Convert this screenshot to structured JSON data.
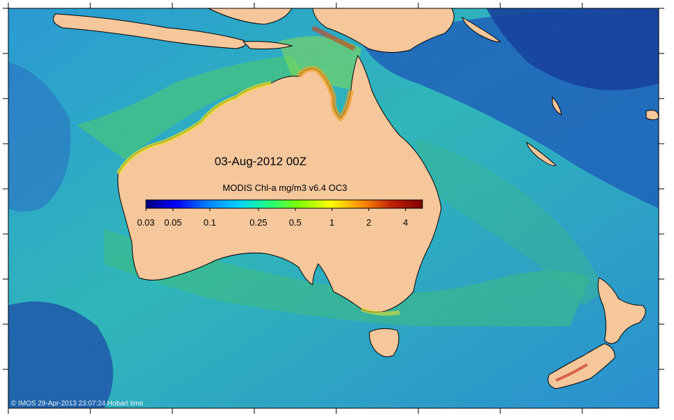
{
  "map": {
    "date_label": "03-Aug-2012 00Z",
    "product_label": "MODIS Chl-a mg/m3 v6.4 OC3",
    "credit": "© IMOS 29-Apr-2013 23:07:24 Hobart time",
    "colors": {
      "ocean_deep": "#1c5fb8",
      "ocean_mid": "#27a6d6",
      "ocean_green": "#38c07a",
      "land": "#f7c79c",
      "coast_outline": "#000000",
      "background": "#ffffff"
    },
    "colorbar": {
      "stops": [
        "#00007f",
        "#0000ff",
        "#0080ff",
        "#00d0ff",
        "#20ff80",
        "#80ff00",
        "#ffff00",
        "#ff9000",
        "#c02000",
        "#7f0000"
      ],
      "ticks": [
        {
          "label": "0.03",
          "value": 0.03
        },
        {
          "label": "0.05",
          "value": 0.05
        },
        {
          "label": "0.1",
          "value": 0.1
        },
        {
          "label": "0.25",
          "value": 0.25
        },
        {
          "label": "0.5",
          "value": 0.5
        },
        {
          "label": "1",
          "value": 1
        },
        {
          "label": "2",
          "value": 2
        },
        {
          "label": "4",
          "value": 4
        }
      ],
      "min": 0.03,
      "max": 5.5,
      "scale": "log"
    }
  }
}
